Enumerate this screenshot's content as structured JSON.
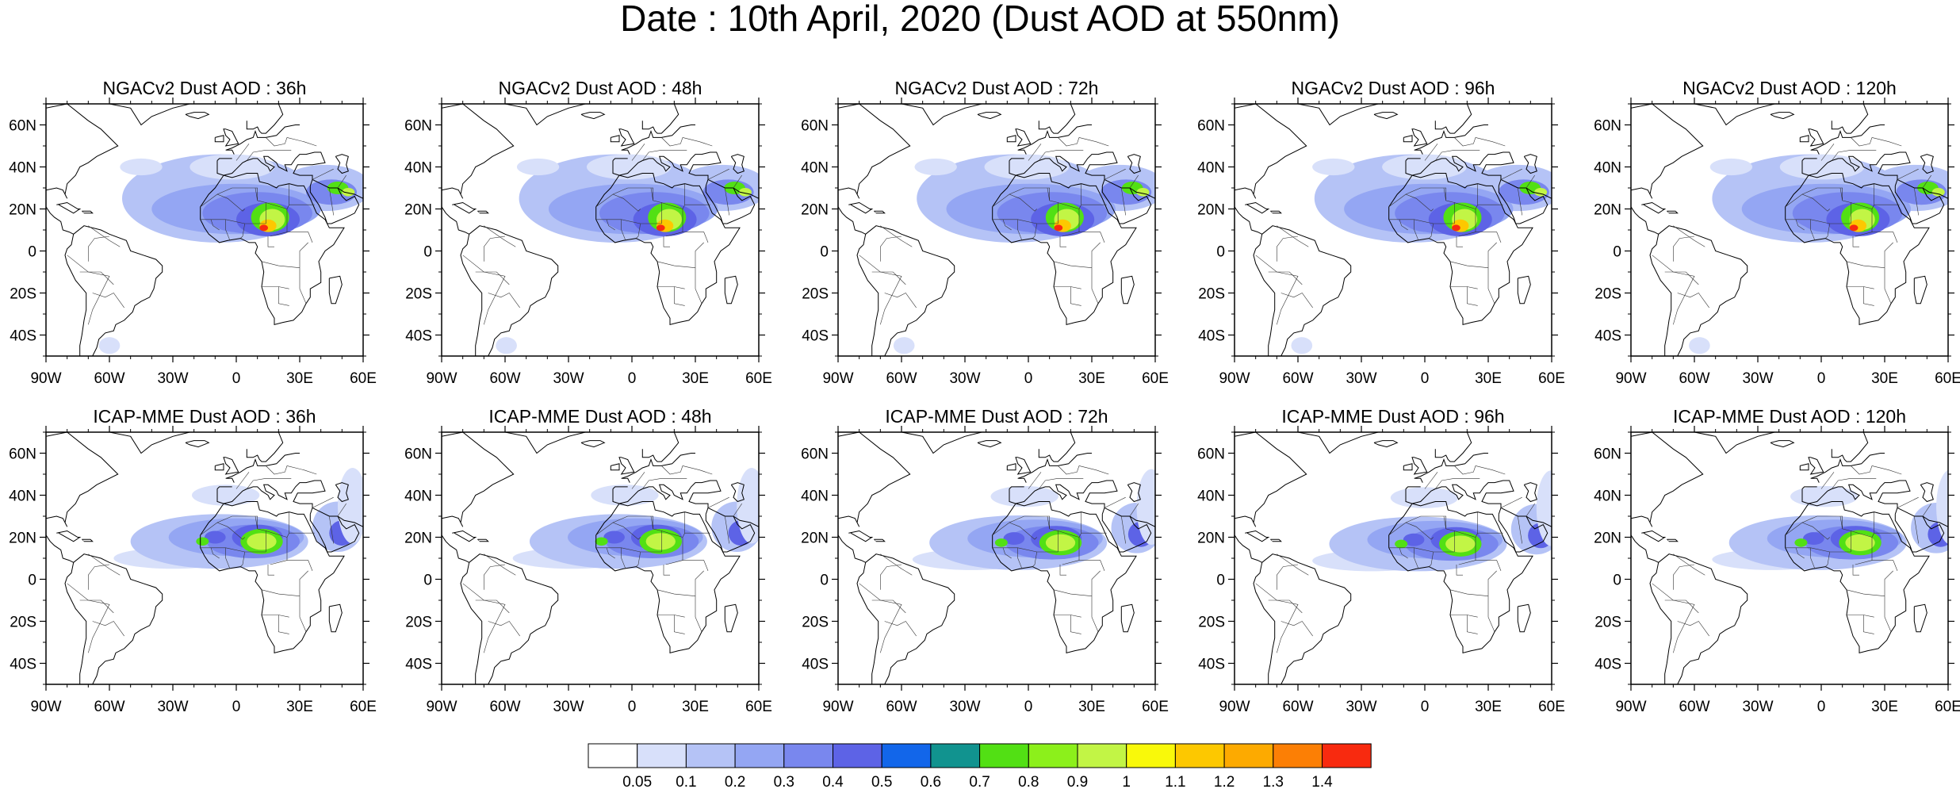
{
  "title": "Date : 10th April, 2020 (Dust AOD at 550nm)",
  "panels": [
    {
      "title": "NGACv2 Dust AOD : 36h"
    },
    {
      "title": "NGACv2 Dust AOD : 48h"
    },
    {
      "title": "NGACv2 Dust AOD : 72h"
    },
    {
      "title": "NGACv2 Dust AOD : 96h"
    },
    {
      "title": "NGACv2 Dust AOD : 120h"
    },
    {
      "title": "ICAP-MME Dust AOD : 36h"
    },
    {
      "title": "ICAP-MME Dust AOD : 48h"
    },
    {
      "title": "ICAP-MME Dust AOD : 72h"
    },
    {
      "title": "ICAP-MME Dust AOD : 96h"
    },
    {
      "title": "ICAP-MME Dust AOD : 120h"
    }
  ],
  "map_extent": {
    "lon": [
      -90,
      60
    ],
    "lat": [
      -50,
      70
    ]
  },
  "lat_ticks": [
    "60N",
    "40N",
    "20N",
    "0",
    "20S",
    "40S"
  ],
  "lon_ticks": [
    "90W",
    "60W",
    "30W",
    "0",
    "30E",
    "60E"
  ],
  "colorbar": {
    "labels": [
      "0.05",
      "0.1",
      "0.2",
      "0.3",
      "0.4",
      "0.5",
      "0.6",
      "0.7",
      "0.8",
      "0.9",
      "1",
      "1.1",
      "1.2",
      "1.3",
      "1.4"
    ],
    "colors": [
      "#ffffff",
      "#d8e0fa",
      "#b5c3f6",
      "#94a6f3",
      "#7987ee",
      "#5d63e6",
      "#1266ea",
      "#11938f",
      "#52e014",
      "#8cf01b",
      "#c2f545",
      "#f9f90a",
      "#fdc800",
      "#fdaa00",
      "#fc7f05",
      "#f82a0f"
    ]
  }
}
